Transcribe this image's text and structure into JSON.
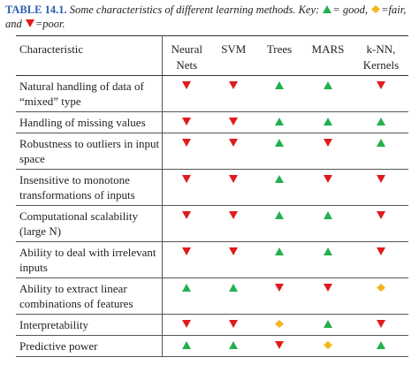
{
  "caption": {
    "label": "TABLE 14.1.",
    "text": "Some characteristics of different learning methods. Key:",
    "key": [
      {
        "rating": "good",
        "text": "= good,"
      },
      {
        "rating": "fair",
        "text": "=fair, and"
      },
      {
        "rating": "poor",
        "text": "=poor."
      }
    ]
  },
  "table": {
    "header": [
      "Characteristic",
      "Neural Nets",
      "SVM",
      "Trees",
      "MARS",
      "k-NN, Kernels"
    ],
    "rows": [
      {
        "label": "Natural handling of data of “mixed” type",
        "ratings": [
          "poor",
          "poor",
          "good",
          "good",
          "poor"
        ]
      },
      {
        "label": "Handling of missing values",
        "ratings": [
          "poor",
          "poor",
          "good",
          "good",
          "good"
        ]
      },
      {
        "label": "Robustness to outliers in input space",
        "ratings": [
          "poor",
          "poor",
          "good",
          "poor",
          "good"
        ]
      },
      {
        "label": "Insensitive to monotone transformations of inputs",
        "ratings": [
          "poor",
          "poor",
          "good",
          "poor",
          "poor"
        ]
      },
      {
        "label": "Computational scalability (large N)",
        "ratings": [
          "poor",
          "poor",
          "good",
          "good",
          "poor"
        ]
      },
      {
        "label": "Ability to deal with irrelevant inputs",
        "ratings": [
          "poor",
          "poor",
          "good",
          "good",
          "poor"
        ]
      },
      {
        "label": "Ability to extract linear combinations of features",
        "ratings": [
          "good",
          "good",
          "poor",
          "poor",
          "fair"
        ]
      },
      {
        "label": "Interpretability",
        "ratings": [
          "poor",
          "poor",
          "fair",
          "good",
          "poor"
        ]
      },
      {
        "label": "Predictive power",
        "ratings": [
          "good",
          "good",
          "poor",
          "fair",
          "good"
        ]
      }
    ]
  }
}
